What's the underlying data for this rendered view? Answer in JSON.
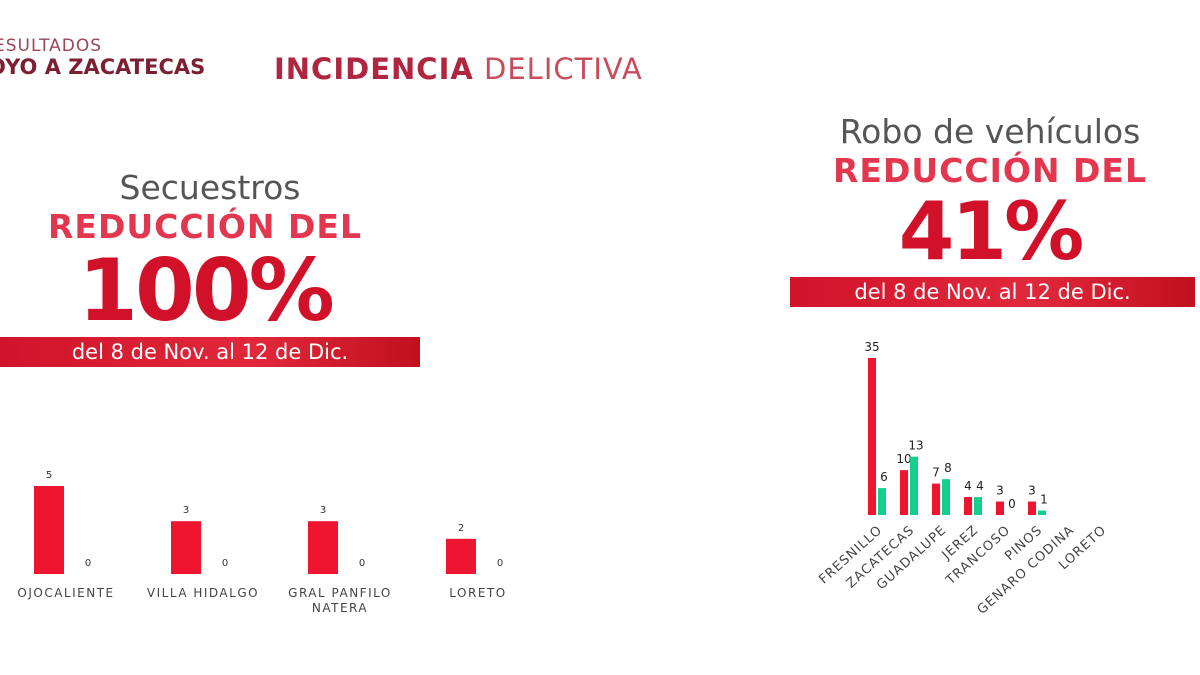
{
  "header": {
    "left_line1": "ESULTADOS",
    "left_line2": "OYO A ZACATECAS",
    "title_bold": "INCIDENCIA",
    "title_light": "DELICTIVA"
  },
  "secuestros": {
    "subtitle": "Secuestros",
    "headline": "REDUCCIÓN DEL",
    "percent": "100%",
    "banner": "del 8 de Nov. al 12 de Dic."
  },
  "robo": {
    "subtitle": "Robo de vehículos",
    "headline": "REDUCCIÓN DEL",
    "percent": "41%",
    "banner": "del 8 de Nov. al 12 de Dic."
  },
  "colors": {
    "red": "#ee1530",
    "green": "#13d18a",
    "banner": "#d0142b"
  },
  "chart_data": [
    {
      "type": "bar",
      "title": "Secuestros",
      "categories": [
        "OJOCALIENTE",
        "VILLA HIDALGO",
        "GRAL PANFILO NATERA",
        "LORETO"
      ],
      "category_lines": [
        [
          "OJOCALIENTE"
        ],
        [
          "VILLA HIDALGO"
        ],
        [
          "GRAL  PANFILO",
          "NATERA"
        ],
        [
          "LORETO"
        ]
      ],
      "series": [
        {
          "values": [
            5,
            3,
            3,
            2
          ]
        },
        {
          "values": [
            0,
            0,
            0,
            0
          ]
        }
      ],
      "ylim": [
        0,
        5
      ]
    },
    {
      "type": "bar",
      "title": "Robo de vehículos",
      "categories": [
        "FRESNILLO",
        "ZACATECAS",
        "GUADALUPE",
        "JEREZ",
        "TRANCOSO",
        "PINOS",
        "GENARO CODINA",
        "LORETO"
      ],
      "series": [
        {
          "values": [
            35,
            10,
            7,
            4,
            3,
            3,
            null,
            null
          ]
        },
        {
          "values": [
            6,
            13,
            8,
            4,
            0,
            1,
            null,
            null
          ]
        }
      ],
      "ylim": [
        0,
        35
      ]
    }
  ]
}
